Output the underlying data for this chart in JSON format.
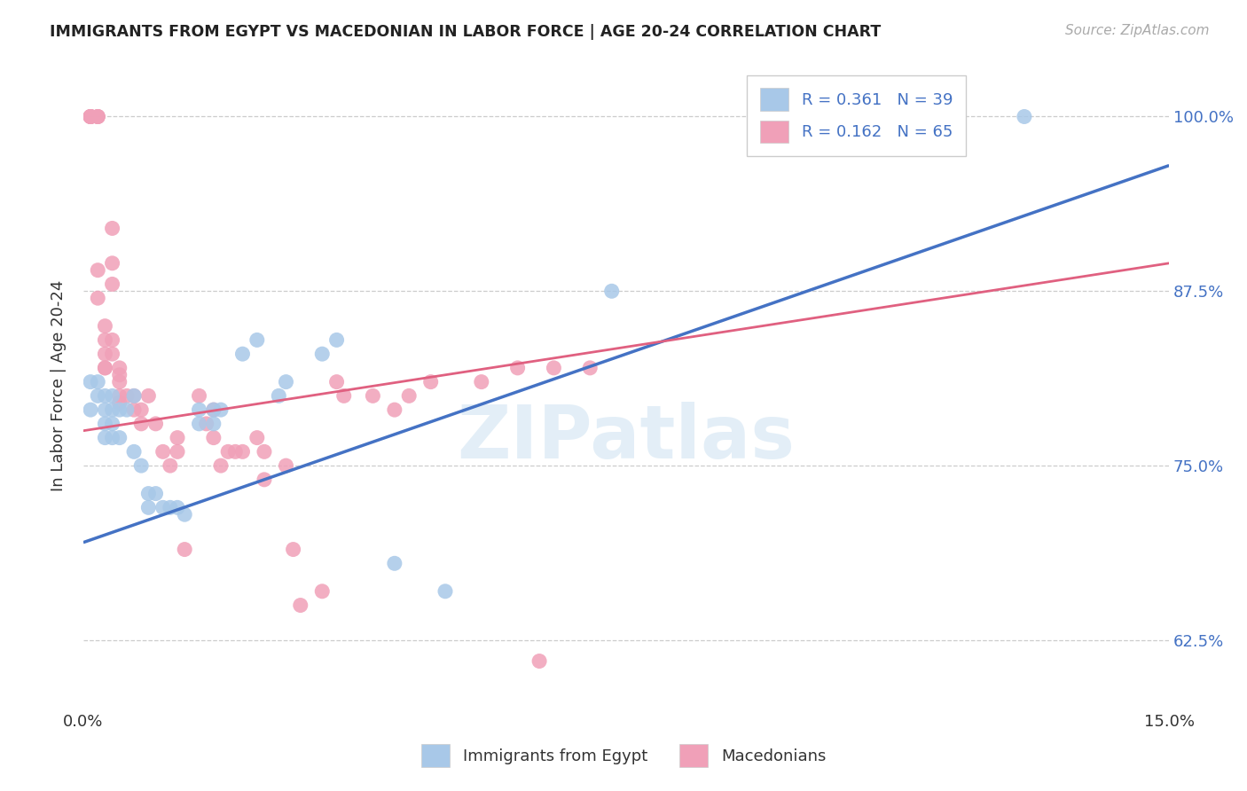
{
  "title": "IMMIGRANTS FROM EGYPT VS MACEDONIAN IN LABOR FORCE | AGE 20-24 CORRELATION CHART",
  "source": "Source: ZipAtlas.com",
  "ylabel_label": "In Labor Force | Age 20-24",
  "xlim": [
    0.0,
    0.15
  ],
  "ylim": [
    0.575,
    1.04
  ],
  "x_ticks": [
    0.0,
    0.03,
    0.06,
    0.09,
    0.12,
    0.15
  ],
  "x_tick_labels": [
    "0.0%",
    "",
    "",
    "",
    "",
    "15.0%"
  ],
  "y_tick_labels": [
    "62.5%",
    "75.0%",
    "87.5%",
    "100.0%"
  ],
  "y_ticks": [
    0.625,
    0.75,
    0.875,
    1.0
  ],
  "blue_color": "#a8c8e8",
  "pink_color": "#f0a0b8",
  "blue_line_color": "#4472c4",
  "pink_line_color": "#e06080",
  "watermark": "ZIPatlas",
  "egypt_points": [
    [
      0.001,
      0.81
    ],
    [
      0.001,
      0.79
    ],
    [
      0.002,
      0.8
    ],
    [
      0.002,
      0.81
    ],
    [
      0.003,
      0.8
    ],
    [
      0.003,
      0.79
    ],
    [
      0.003,
      0.78
    ],
    [
      0.003,
      0.77
    ],
    [
      0.004,
      0.8
    ],
    [
      0.004,
      0.79
    ],
    [
      0.004,
      0.78
    ],
    [
      0.004,
      0.77
    ],
    [
      0.005,
      0.79
    ],
    [
      0.005,
      0.77
    ],
    [
      0.006,
      0.79
    ],
    [
      0.007,
      0.8
    ],
    [
      0.007,
      0.76
    ],
    [
      0.008,
      0.75
    ],
    [
      0.009,
      0.73
    ],
    [
      0.009,
      0.72
    ],
    [
      0.01,
      0.73
    ],
    [
      0.011,
      0.72
    ],
    [
      0.012,
      0.72
    ],
    [
      0.013,
      0.72
    ],
    [
      0.014,
      0.715
    ],
    [
      0.016,
      0.79
    ],
    [
      0.016,
      0.78
    ],
    [
      0.018,
      0.79
    ],
    [
      0.018,
      0.78
    ],
    [
      0.019,
      0.79
    ],
    [
      0.022,
      0.83
    ],
    [
      0.024,
      0.84
    ],
    [
      0.027,
      0.8
    ],
    [
      0.028,
      0.81
    ],
    [
      0.033,
      0.83
    ],
    [
      0.035,
      0.84
    ],
    [
      0.043,
      0.68
    ],
    [
      0.05,
      0.66
    ],
    [
      0.073,
      0.875
    ],
    [
      0.13,
      1.0
    ]
  ],
  "mace_points": [
    [
      0.001,
      1.0
    ],
    [
      0.001,
      1.0
    ],
    [
      0.001,
      1.0
    ],
    [
      0.001,
      1.0
    ],
    [
      0.001,
      1.0
    ],
    [
      0.002,
      1.0
    ],
    [
      0.002,
      1.0
    ],
    [
      0.002,
      1.0
    ],
    [
      0.002,
      0.89
    ],
    [
      0.002,
      0.87
    ],
    [
      0.003,
      0.85
    ],
    [
      0.003,
      0.84
    ],
    [
      0.003,
      0.83
    ],
    [
      0.003,
      0.82
    ],
    [
      0.003,
      0.82
    ],
    [
      0.004,
      0.92
    ],
    [
      0.004,
      0.895
    ],
    [
      0.004,
      0.88
    ],
    [
      0.004,
      0.84
    ],
    [
      0.004,
      0.83
    ],
    [
      0.005,
      0.82
    ],
    [
      0.005,
      0.815
    ],
    [
      0.005,
      0.81
    ],
    [
      0.005,
      0.8
    ],
    [
      0.005,
      0.795
    ],
    [
      0.006,
      0.8
    ],
    [
      0.007,
      0.8
    ],
    [
      0.007,
      0.79
    ],
    [
      0.008,
      0.79
    ],
    [
      0.008,
      0.78
    ],
    [
      0.009,
      0.8
    ],
    [
      0.01,
      0.78
    ],
    [
      0.011,
      0.76
    ],
    [
      0.012,
      0.75
    ],
    [
      0.013,
      0.77
    ],
    [
      0.013,
      0.76
    ],
    [
      0.014,
      0.69
    ],
    [
      0.016,
      0.8
    ],
    [
      0.017,
      0.78
    ],
    [
      0.018,
      0.79
    ],
    [
      0.018,
      0.77
    ],
    [
      0.019,
      0.75
    ],
    [
      0.02,
      0.76
    ],
    [
      0.021,
      0.76
    ],
    [
      0.022,
      0.76
    ],
    [
      0.024,
      0.77
    ],
    [
      0.025,
      0.76
    ],
    [
      0.025,
      0.74
    ],
    [
      0.028,
      0.75
    ],
    [
      0.029,
      0.69
    ],
    [
      0.03,
      0.65
    ],
    [
      0.033,
      0.66
    ],
    [
      0.035,
      0.81
    ],
    [
      0.036,
      0.8
    ],
    [
      0.04,
      0.8
    ],
    [
      0.043,
      0.79
    ],
    [
      0.045,
      0.8
    ],
    [
      0.048,
      0.81
    ],
    [
      0.055,
      0.81
    ],
    [
      0.06,
      0.82
    ],
    [
      0.063,
      0.61
    ],
    [
      0.065,
      0.82
    ],
    [
      0.07,
      0.82
    ]
  ]
}
